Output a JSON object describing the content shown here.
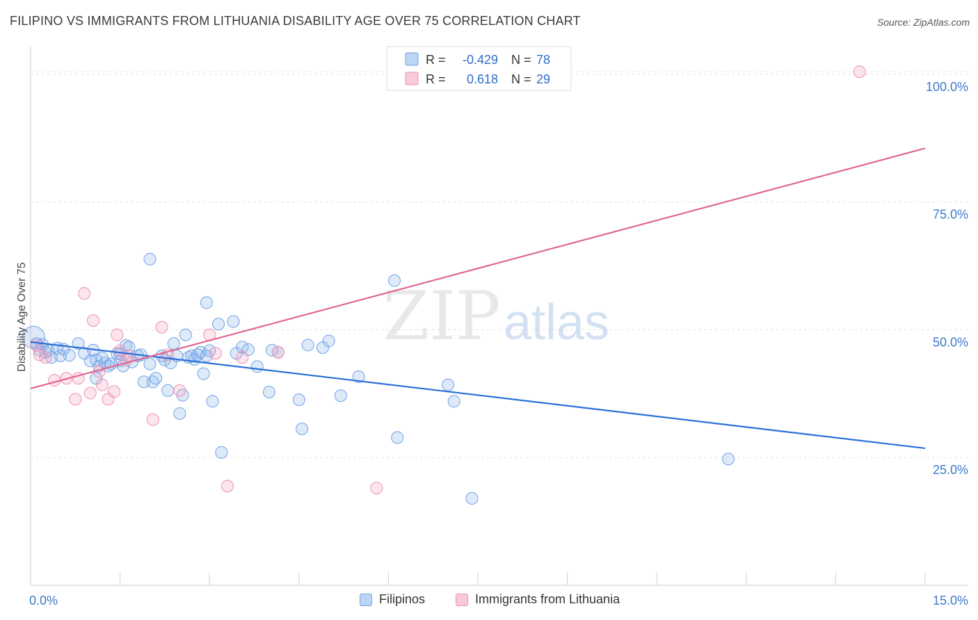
{
  "title": "FILIPINO VS IMMIGRANTS FROM LITHUANIA DISABILITY AGE OVER 75 CORRELATION CHART",
  "source": "Source: ZipAtlas.com",
  "watermark": {
    "zip": "ZIP",
    "atlas": "atlas"
  },
  "legend_top": [
    {
      "r_label": "R =",
      "r_value": "-0.429",
      "n_label": "N =",
      "n_value": "78"
    },
    {
      "r_label": "R =",
      "r_value": "0.618",
      "n_label": "N =",
      "n_value": "29"
    }
  ],
  "legend_bottom": [
    "Filipinos",
    "Immigrants from Lithuania"
  ],
  "chart_data": {
    "type": "scatter",
    "title": "FILIPINO VS IMMIGRANTS FROM LITHUANIA DISABILITY AGE OVER 75 CORRELATION CHART",
    "xlabel": "",
    "ylabel": "Disability Age Over 75",
    "xlim": [
      0,
      15
    ],
    "ylim": [
      0,
      105
    ],
    "x_tick_labels": [
      "0.0%",
      "15.0%"
    ],
    "y_ticks": [
      25,
      50,
      75,
      100
    ],
    "y_tick_labels": [
      "25.0%",
      "50.0%",
      "75.0%",
      "100.0%"
    ],
    "grid": true,
    "legend_position": "top-center",
    "colors": {
      "Filipinos": "#5b9be6",
      "Immigrants from Lithuania": "#f08cab",
      "line_blue": "#2a6fd6",
      "line_pink": "#e06592",
      "tick_label": "#3d78cc"
    },
    "series": [
      {
        "name": "Filipinos",
        "r": -0.429,
        "n": 78,
        "trend": {
          "x": [
            0,
            15
          ],
          "y": [
            47.6,
            26.8
          ]
        },
        "points": [
          [
            0.05,
            48.5
          ],
          [
            0.1,
            47.3
          ],
          [
            0.15,
            46.0
          ],
          [
            0.2,
            47.1
          ],
          [
            0.25,
            45.6
          ],
          [
            0.3,
            45.9
          ],
          [
            0.35,
            44.6
          ],
          [
            0.45,
            46.4
          ],
          [
            0.5,
            44.9
          ],
          [
            0.55,
            46.2
          ],
          [
            0.65,
            45.0
          ],
          [
            0.8,
            47.3
          ],
          [
            0.9,
            45.4
          ],
          [
            1.0,
            43.9
          ],
          [
            1.05,
            46.0
          ],
          [
            1.1,
            44.1
          ],
          [
            1.15,
            42.9
          ],
          [
            1.2,
            44.5
          ],
          [
            1.25,
            43.5
          ],
          [
            1.3,
            42.9
          ],
          [
            1.35,
            43.3
          ],
          [
            1.45,
            45.3
          ],
          [
            1.5,
            43.9
          ],
          [
            1.55,
            42.9
          ],
          [
            1.6,
            46.9
          ],
          [
            1.65,
            46.6
          ],
          [
            1.7,
            43.7
          ],
          [
            1.8,
            44.9
          ],
          [
            1.85,
            45.1
          ],
          [
            1.9,
            39.8
          ],
          [
            2.0,
            43.3
          ],
          [
            2.05,
            39.8
          ],
          [
            2.1,
            40.5
          ],
          [
            2.2,
            44.9
          ],
          [
            2.25,
            44.1
          ],
          [
            2.3,
            38.1
          ],
          [
            2.35,
            43.5
          ],
          [
            2.4,
            47.3
          ],
          [
            2.45,
            44.9
          ],
          [
            2.5,
            33.6
          ],
          [
            2.55,
            37.2
          ],
          [
            2.6,
            49.0
          ],
          [
            2.65,
            44.6
          ],
          [
            2.7,
            44.9
          ],
          [
            2.75,
            44.2
          ],
          [
            2.8,
            45.1
          ],
          [
            2.85,
            45.6
          ],
          [
            2.9,
            41.4
          ],
          [
            2.95,
            44.9
          ],
          [
            3.0,
            45.9
          ],
          [
            3.05,
            36.0
          ],
          [
            3.15,
            51.1
          ],
          [
            3.4,
            51.6
          ],
          [
            3.45,
            45.4
          ],
          [
            3.55,
            46.6
          ],
          [
            3.65,
            46.1
          ],
          [
            3.8,
            42.8
          ],
          [
            4.0,
            37.8
          ],
          [
            4.05,
            46.0
          ],
          [
            4.15,
            45.6
          ],
          [
            4.5,
            36.3
          ],
          [
            4.55,
            30.6
          ],
          [
            4.65,
            47.0
          ],
          [
            4.9,
            46.5
          ],
          [
            5.0,
            47.8
          ],
          [
            5.2,
            37.1
          ],
          [
            5.5,
            40.8
          ],
          [
            6.1,
            59.6
          ],
          [
            6.15,
            28.9
          ],
          [
            7.0,
            39.2
          ],
          [
            7.1,
            36.0
          ],
          [
            7.4,
            17.0
          ],
          [
            11.7,
            24.7
          ],
          [
            2.0,
            63.8
          ],
          [
            1.1,
            40.5
          ],
          [
            3.2,
            26.0
          ],
          [
            1.5,
            45.3
          ],
          [
            2.95,
            55.3
          ]
        ]
      },
      {
        "name": "Immigrants from Lithuania",
        "r": 0.618,
        "n": 29,
        "trend": {
          "x": [
            0,
            15
          ],
          "y": [
            38.5,
            85.5
          ]
        },
        "points": [
          [
            0.1,
            46.9
          ],
          [
            0.15,
            45.1
          ],
          [
            0.25,
            44.6
          ],
          [
            0.4,
            40.1
          ],
          [
            0.6,
            40.5
          ],
          [
            0.75,
            36.4
          ],
          [
            0.8,
            40.5
          ],
          [
            0.9,
            57.1
          ],
          [
            1.0,
            37.6
          ],
          [
            1.05,
            51.8
          ],
          [
            1.15,
            41.8
          ],
          [
            1.2,
            39.2
          ],
          [
            1.3,
            36.4
          ],
          [
            1.4,
            37.9
          ],
          [
            1.45,
            49.0
          ],
          [
            1.5,
            45.9
          ],
          [
            1.6,
            44.0
          ],
          [
            1.65,
            44.9
          ],
          [
            2.05,
            32.4
          ],
          [
            2.2,
            50.5
          ],
          [
            2.3,
            45.1
          ],
          [
            2.5,
            38.1
          ],
          [
            3.0,
            49.0
          ],
          [
            3.1,
            45.4
          ],
          [
            3.3,
            19.4
          ],
          [
            3.55,
            44.6
          ],
          [
            4.15,
            45.6
          ],
          [
            5.8,
            19.0
          ],
          [
            13.9,
            100.5
          ]
        ]
      }
    ]
  }
}
